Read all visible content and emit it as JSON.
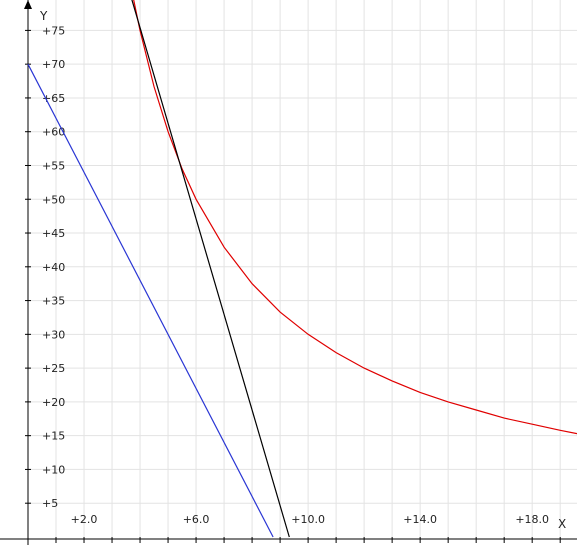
{
  "chart_data": {
    "type": "line",
    "xlabel": "X",
    "ylabel": "Y",
    "xlim": [
      0,
      19.6
    ],
    "ylim": [
      -0.3,
      79.5
    ],
    "grid": true,
    "x_ticks": [
      {
        "value": 2,
        "label": "+2.0"
      },
      {
        "value": 6,
        "label": "+6.0"
      },
      {
        "value": 10,
        "label": "+10.0"
      },
      {
        "value": 14,
        "label": "+14.0"
      },
      {
        "value": 18,
        "label": "+18.0"
      }
    ],
    "y_ticks": [
      {
        "value": 5,
        "label": "+5"
      },
      {
        "value": 10,
        "label": "+10"
      },
      {
        "value": 15,
        "label": "+15"
      },
      {
        "value": 20,
        "label": "+20"
      },
      {
        "value": 25,
        "label": "+25"
      },
      {
        "value": 30,
        "label": "+30"
      },
      {
        "value": 35,
        "label": "+35"
      },
      {
        "value": 40,
        "label": "+40"
      },
      {
        "value": 45,
        "label": "+45"
      },
      {
        "value": 50,
        "label": "+50"
      },
      {
        "value": 55,
        "label": "+55"
      },
      {
        "value": 60,
        "label": "+60"
      },
      {
        "value": 65,
        "label": "+65"
      },
      {
        "value": 70,
        "label": "+70"
      },
      {
        "value": 75,
        "label": "+75"
      }
    ],
    "series": [
      {
        "color": "#e00000",
        "x": [
          3.75,
          4,
          4.5,
          5,
          5.5,
          6,
          7,
          8,
          9,
          10,
          11,
          12,
          13,
          14,
          15,
          16,
          17,
          18,
          19,
          19.6
        ],
        "y": [
          80,
          75,
          66.7,
          60,
          54.5,
          50,
          42.9,
          37.5,
          33.3,
          30,
          27.3,
          25,
          23.1,
          21.4,
          20,
          18.8,
          17.6,
          16.7,
          15.8,
          15.3
        ]
      },
      {
        "color": "#000000",
        "x": [
          3.5,
          9.33
        ],
        "y": [
          82.5,
          0
        ]
      },
      {
        "color": "#2a36d4",
        "x": [
          0,
          8.75
        ],
        "y": [
          70,
          0
        ]
      }
    ]
  }
}
